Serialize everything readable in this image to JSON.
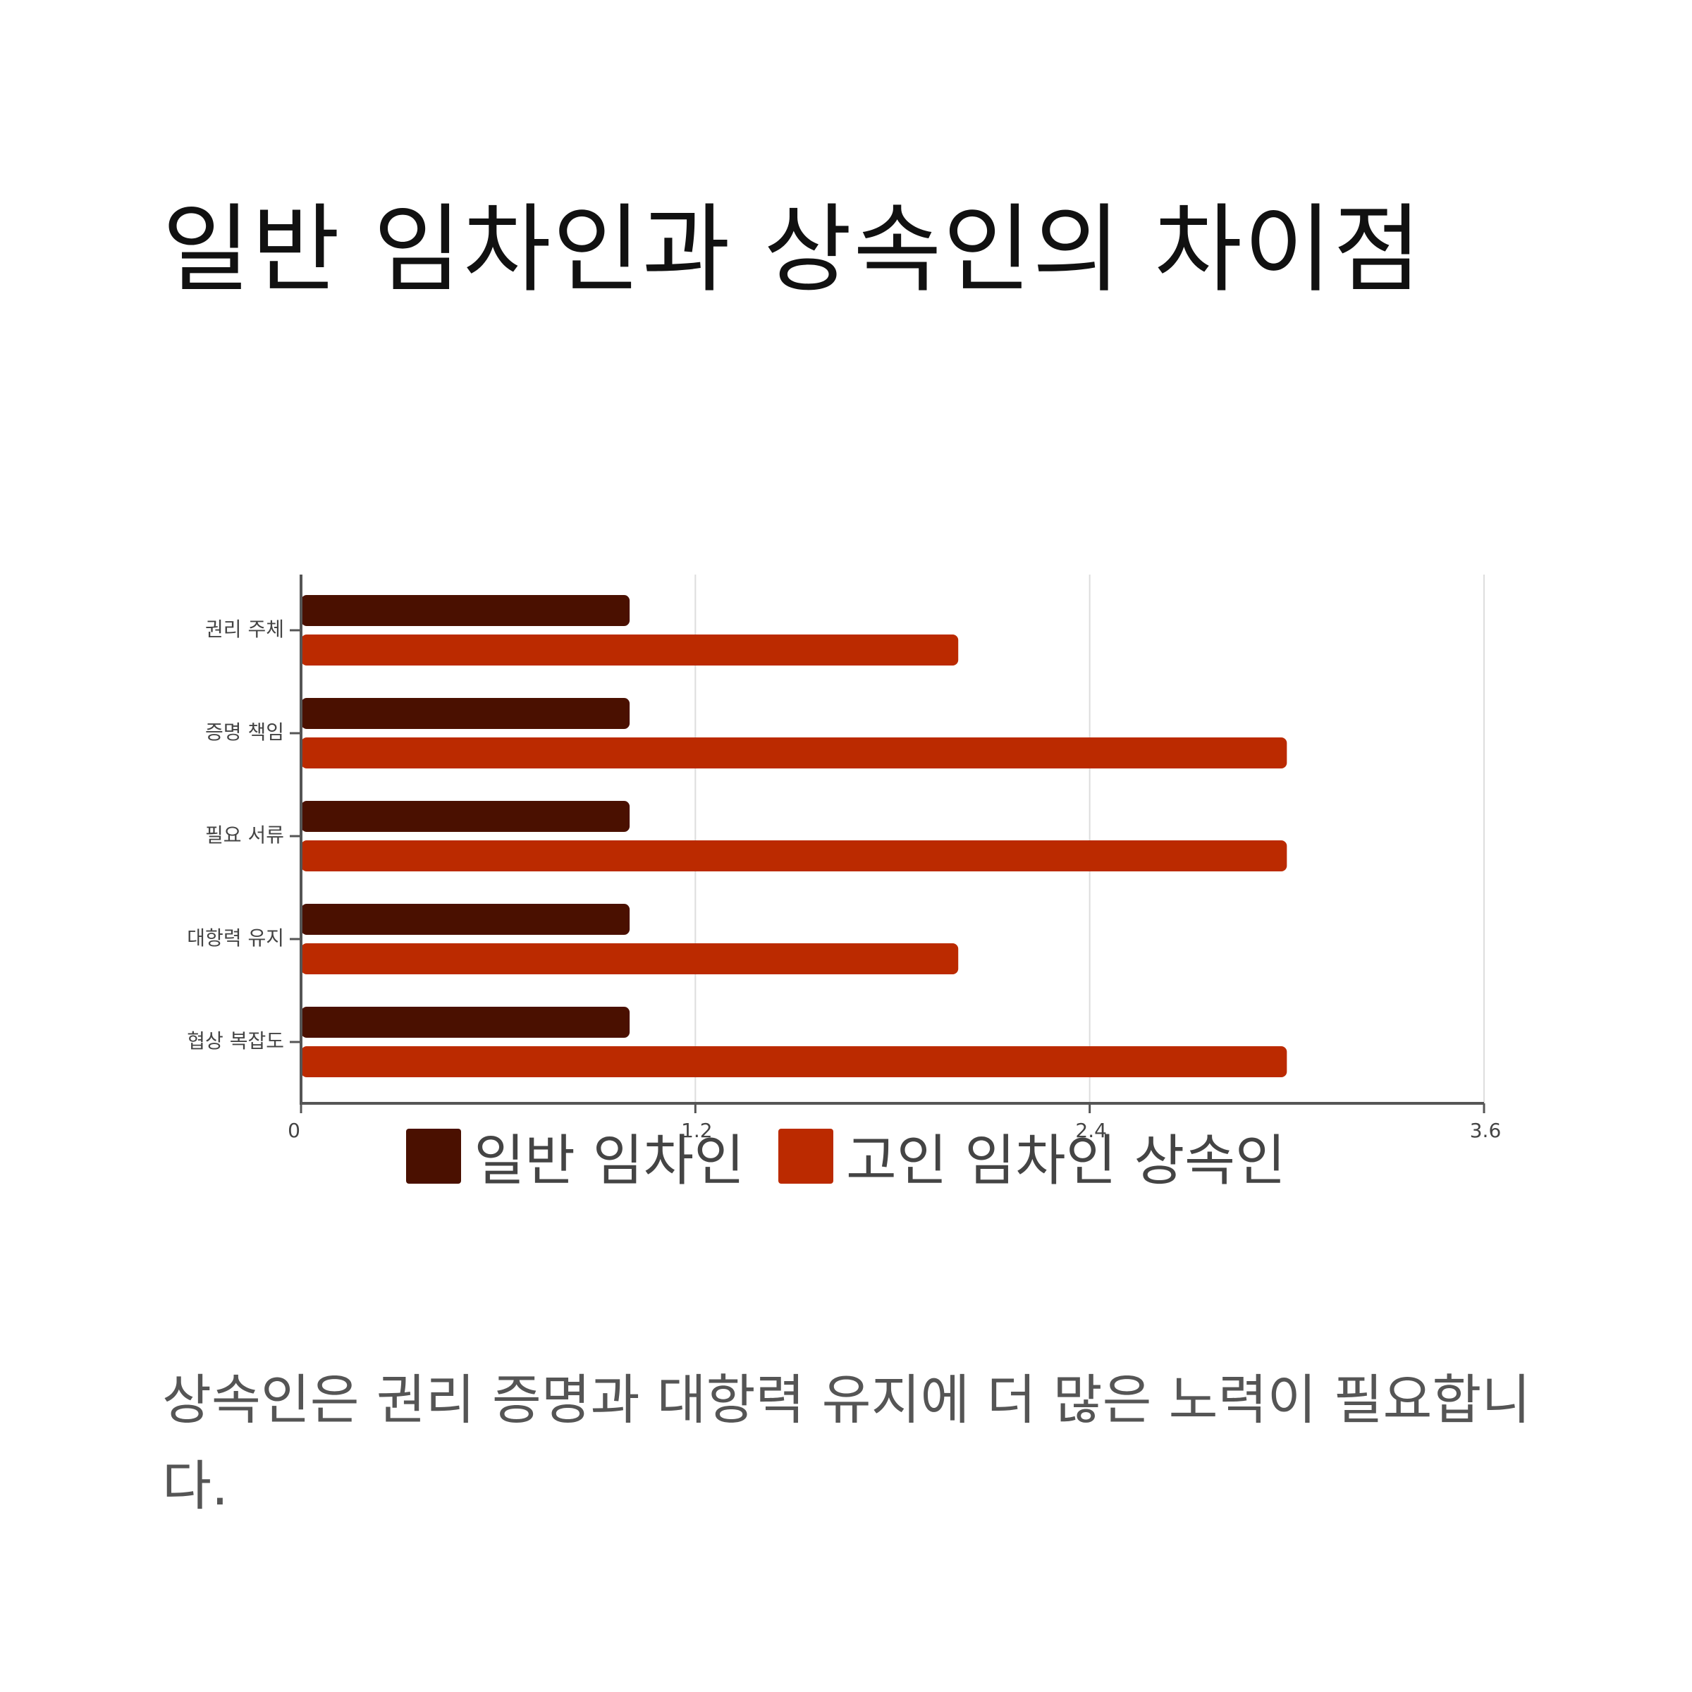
{
  "page": {
    "title": "일반 임차인과 상속인의 차이점",
    "caption": "상속인은 권리 증명과 대항력 유지에 더 많은 노력이 필요합니다."
  },
  "colors": {
    "general_tenant": "#4a1000",
    "heir": "#bb2a00",
    "axis": "#555555",
    "grid": "#dddddd",
    "tick_text": "#444444"
  },
  "chart_data": {
    "type": "bar",
    "orientation": "horizontal",
    "title": "",
    "xlabel": "",
    "ylabel": "",
    "categories": [
      "권리 주체",
      "증명 책임",
      "필요 서류",
      "대항력 유지",
      "협상 복잡도"
    ],
    "series": [
      {
        "name": "일반 임차인",
        "values": [
          1,
          1,
          1,
          1,
          1
        ]
      },
      {
        "name": "고인 임차인 상속인",
        "values": [
          2,
          3,
          3,
          2,
          3
        ]
      }
    ],
    "xlim": [
      0,
      3.6
    ],
    "xticks": [
      0,
      1.2,
      2.4,
      3.6
    ],
    "xtick_labels": [
      "0",
      "1.2",
      "2.4",
      "3.6"
    ],
    "grid": "vertical",
    "legend_position": "bottom"
  }
}
